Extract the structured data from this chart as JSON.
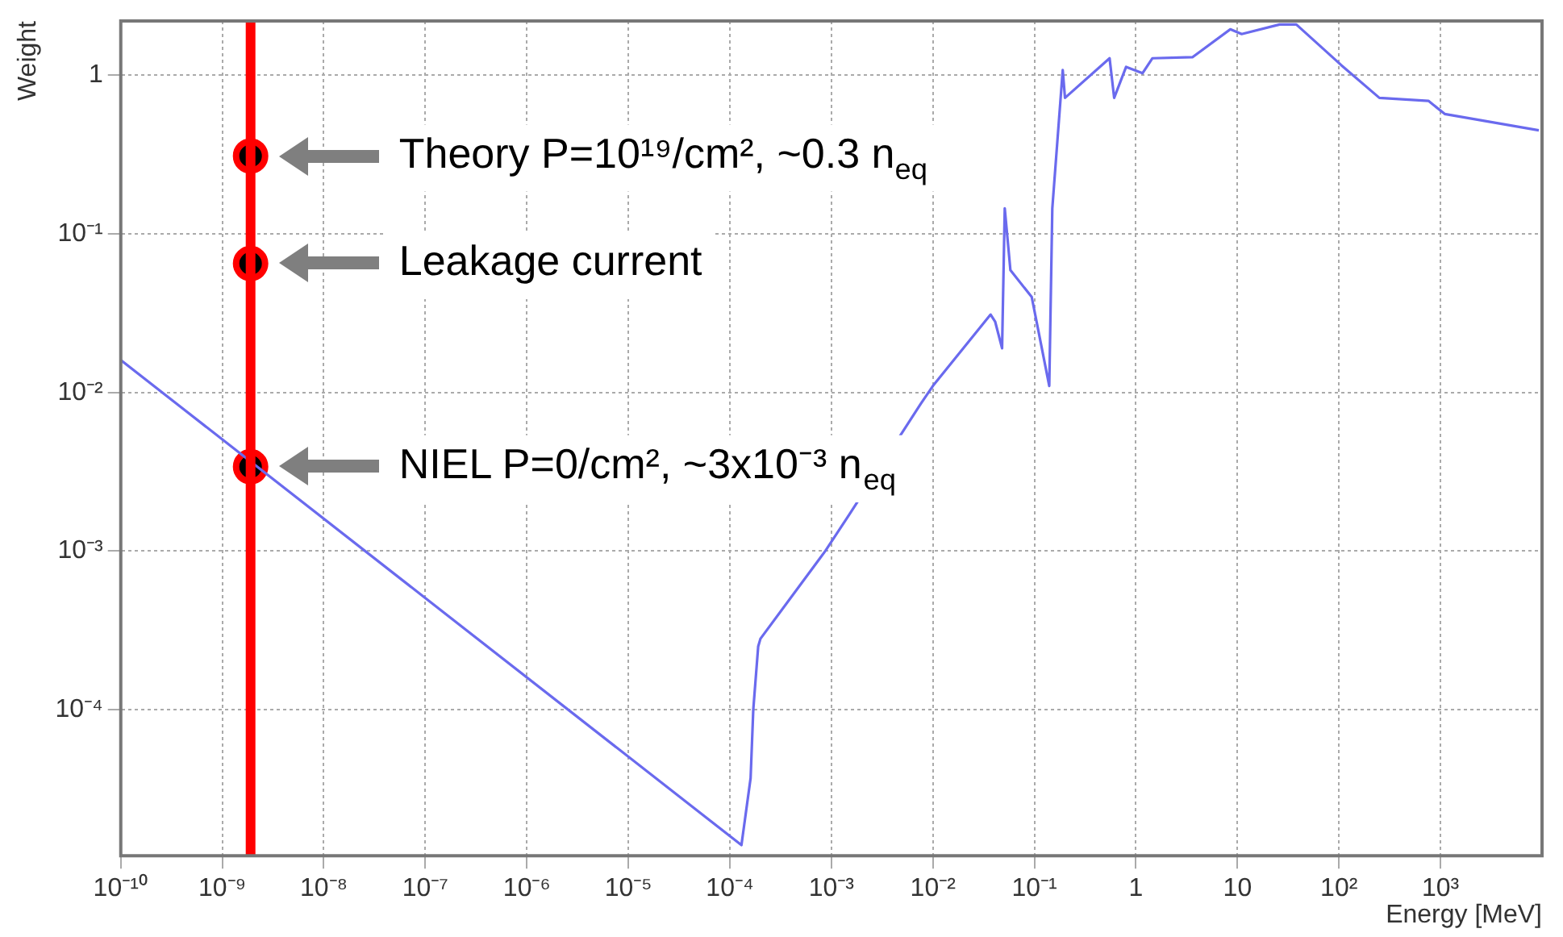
{
  "chart_data": {
    "type": "line",
    "xlabel": "Energy [MeV]",
    "ylabel": "Weight",
    "log": "xy",
    "grid": true,
    "legend": false,
    "xlim": [
      1e-10,
      10000
    ],
    "ylim": [
      1.2e-05,
      2.2
    ],
    "xticks": [
      {
        "value": 1e-10,
        "label": "10⁻¹⁰"
      },
      {
        "value": 1e-09,
        "label": "10⁻⁹"
      },
      {
        "value": 1e-08,
        "label": "10⁻⁸"
      },
      {
        "value": 1e-07,
        "label": "10⁻⁷"
      },
      {
        "value": 1e-06,
        "label": "10⁻⁶"
      },
      {
        "value": 1e-05,
        "label": "10⁻⁵"
      },
      {
        "value": 0.0001,
        "label": "10⁻⁴"
      },
      {
        "value": 0.001,
        "label": "10⁻³"
      },
      {
        "value": 0.01,
        "label": "10⁻²"
      },
      {
        "value": 0.1,
        "label": "10⁻¹"
      },
      1,
      10,
      {
        "value": 100,
        "label": "10²"
      },
      {
        "value": 1000,
        "label": "10³"
      }
    ],
    "yticks": [
      {
        "value": 0.0001,
        "label": "10⁻⁴"
      },
      {
        "value": 0.001,
        "label": "10⁻³"
      },
      {
        "value": 0.01,
        "label": "10⁻²"
      },
      {
        "value": 0.1,
        "label": "10⁻¹"
      },
      1
    ],
    "series": [
      {
        "type": "line",
        "color": "#6a6aee",
        "x": [
          1e-10,
          0.00013,
          0.00016,
          0.00017,
          0.00019,
          0.0002,
          0.00087,
          0.0015,
          0.0076,
          0.01,
          0.037,
          0.041,
          0.048,
          0.051,
          0.058,
          0.094,
          0.14,
          0.15,
          0.19,
          0.2,
          0.55,
          0.61,
          0.8,
          1.16,
          1.45,
          3.6,
          8.5,
          11,
          26,
          38,
          105,
          250,
          760,
          1100,
          9300
        ],
        "values": [
          0.016,
          1.4e-05,
          3.7e-05,
          0.0001,
          0.00025,
          0.00028,
          0.001,
          0.0017,
          0.0085,
          0.011,
          0.031,
          0.028,
          0.019,
          0.145,
          0.059,
          0.04,
          0.011,
          0.145,
          1.08,
          0.72,
          1.28,
          0.72,
          1.13,
          1.03,
          1.28,
          1.3,
          1.95,
          1.82,
          2.09,
          2.09,
          1.16,
          0.72,
          0.69,
          0.57,
          0.45
        ]
      },
      {
        "type": "scatter",
        "color": "#000000",
        "marker": "circle",
        "x": [
          1.9e-09,
          1.9e-09,
          1.9e-09
        ],
        "values": [
          0.31,
          0.065,
          0.0034
        ]
      }
    ],
    "ref_lines": [
      {
        "axis": "x",
        "value": 1.9e-09,
        "color": "#ff0000"
      }
    ],
    "annotations": [
      "Theory P=10¹⁹/cm², ~0.3 n$_{eq}$",
      "Leakage current",
      "NIEL P=0/cm², ~3x10⁻³ n$_{eq}$"
    ]
  }
}
